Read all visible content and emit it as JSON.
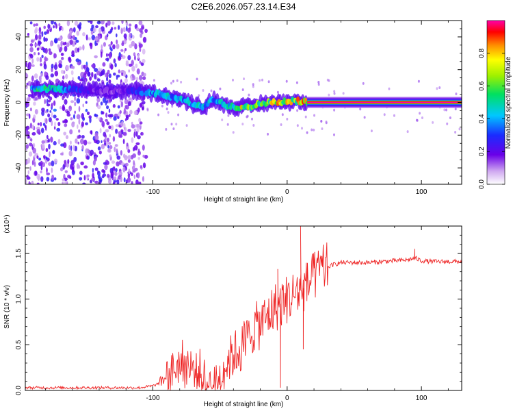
{
  "figure_title": "C2E6.2026.057.23.14.E34",
  "chart_data": [
    {
      "type": "heatmap",
      "title": "C2E6.2026.057.23.14.E34",
      "xlabel": "Height of straight line (km)",
      "ylabel": "Frequency (Hz)",
      "xlim": [
        -195,
        130
      ],
      "ylim": [
        -50,
        50
      ],
      "xticks": [
        -100,
        0,
        100
      ],
      "yticks": [
        -40,
        -20,
        0,
        20,
        40
      ],
      "colorbar": {
        "label": "Normalized spectral amplitude",
        "range": [
          0,
          1
        ],
        "ticks": [
          "0.0",
          "0.2",
          "0.4",
          "0.6",
          "0.8"
        ],
        "tick_values": [
          0,
          0.2,
          0.4,
          0.6,
          0.8
        ]
      },
      "ridge_points": [
        {
          "x": -180,
          "freq": 8,
          "amp": 0.55
        },
        {
          "x": -170,
          "freq": 8,
          "amp": 0.5
        },
        {
          "x": -160,
          "freq": 8,
          "amp": 0.4
        },
        {
          "x": -145,
          "freq": 7,
          "amp": 0.2
        },
        {
          "x": -130,
          "freq": 7,
          "amp": 0.2
        },
        {
          "x": -115,
          "freq": 7,
          "amp": 0.3
        },
        {
          "x": -100,
          "freq": 6,
          "amp": 0.45
        },
        {
          "x": -90,
          "freq": 4,
          "amp": 0.5
        },
        {
          "x": -80,
          "freq": 2,
          "amp": 0.45
        },
        {
          "x": -70,
          "freq": -1,
          "amp": 0.5
        },
        {
          "x": -62,
          "freq": -3,
          "amp": 0.55
        },
        {
          "x": -55,
          "freq": 2,
          "amp": 0.5
        },
        {
          "x": -45,
          "freq": -2,
          "amp": 0.6
        },
        {
          "x": -35,
          "freq": -3,
          "amp": 0.85
        },
        {
          "x": -25,
          "freq": -2,
          "amp": 0.7
        },
        {
          "x": -15,
          "freq": 0,
          "amp": 0.8
        },
        {
          "x": -5,
          "freq": 0,
          "amp": 0.9
        },
        {
          "x": 5,
          "freq": 1,
          "amp": 0.8
        },
        {
          "x": 15,
          "freq": 0,
          "amp": 1.0
        },
        {
          "x": 130,
          "freq": 0,
          "amp": 1.0
        }
      ],
      "noise_region_km": [
        -195,
        -105
      ]
    },
    {
      "type": "line",
      "xlabel": "Height of straight line (km)",
      "ylabel": "SNR (10 * v/v)",
      "y_scale_label": "(x10⁴)",
      "xlim": [
        -195,
        130
      ],
      "ylim": [
        0,
        1.8
      ],
      "xticks": [
        -100,
        0,
        100
      ],
      "yticks": [
        0.0,
        0.5,
        1.0,
        1.5
      ],
      "ytick_labels": [
        "0.0",
        "0.5",
        "1.0",
        "1.5"
      ],
      "color": "#ee2222",
      "series": [
        {
          "name": "SNR",
          "x": [
            -195,
            -170,
            -150,
            -130,
            -110,
            -100,
            -95,
            -90,
            -85,
            -80,
            -75,
            -70,
            -65,
            -60,
            -55,
            -50,
            -45,
            -40,
            -35,
            -30,
            -25,
            -20,
            -15,
            -10,
            -5,
            0,
            5,
            10,
            15,
            20,
            25,
            30,
            35,
            40,
            50,
            60,
            70,
            80,
            90,
            95,
            100,
            110,
            120,
            130
          ],
          "y": [
            0.03,
            0.03,
            0.03,
            0.03,
            0.03,
            0.05,
            0.08,
            0.15,
            0.22,
            0.3,
            0.28,
            0.22,
            0.2,
            0.05,
            0.05,
            0.15,
            0.3,
            0.4,
            0.45,
            0.55,
            0.68,
            0.72,
            0.8,
            0.9,
            0.95,
            1.0,
            1.05,
            1.1,
            1.15,
            1.25,
            1.3,
            1.35,
            1.38,
            1.4,
            1.4,
            1.4,
            1.41,
            1.42,
            1.43,
            1.45,
            1.42,
            1.41,
            1.41,
            1.41
          ],
          "spikes": [
            {
              "x": 10,
              "y": 1.8
            },
            {
              "x": -7,
              "y": 1.33
            },
            {
              "x": -5,
              "y": 0.03
            },
            {
              "x": 12,
              "y": 0.45
            },
            {
              "x": 95,
              "y": 1.55
            }
          ]
        }
      ]
    }
  ]
}
